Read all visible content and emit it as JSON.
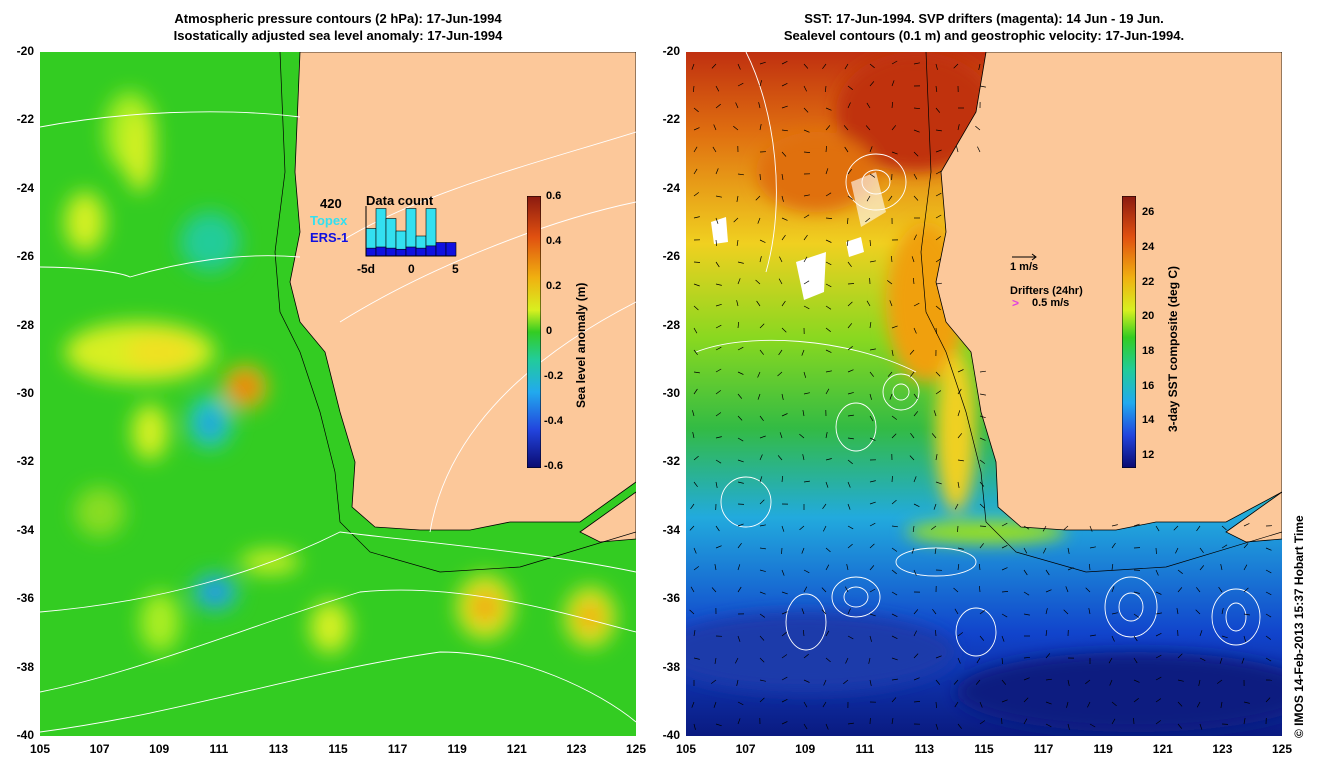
{
  "left_panel": {
    "title_line1": "Atmospheric pressure contours (2 hPa): 17-Jun-1994",
    "title_line2": "Isostatically adjusted sea level anomaly: 17-Jun-1994",
    "colorbar_title": "Sea level anomaly (m)",
    "colorbar_ticks": [
      "0.6",
      "0.4",
      "0.2",
      "0",
      "-0.2",
      "-0.4",
      "-0.6"
    ],
    "inset": {
      "count": "420",
      "topex_label": "Topex",
      "ers_label": "ERS-1",
      "title": "Data count",
      "x_ticks": [
        "-5d",
        "0",
        "5"
      ],
      "topex_color": "#33e0f0",
      "ers_color": "#1010e0",
      "topex_bars": [
        0.55,
        0.95,
        0.75,
        0.5,
        0.95,
        0.4,
        0.95,
        0.1,
        0.0
      ],
      "ers_bars": [
        0.35,
        0.4,
        0.35,
        0.3,
        0.4,
        0.35,
        0.45,
        0.6,
        0.6
      ]
    }
  },
  "right_panel": {
    "title_line1": "SST: 17-Jun-1994. SVP drifters (magenta): 14 Jun - 19 Jun.",
    "title_line2": "Sealevel contours (0.1 m) and geostrophic velocity: 17-Jun-1994.",
    "colorbar_title": "3-day SST composite (deg C)",
    "colorbar_ticks": [
      "26",
      "24",
      "22",
      "20",
      "18",
      "16",
      "14",
      "12"
    ],
    "vector_scale_label": "1 m/s",
    "drifters_label": "Drifters (24hr)",
    "drifter_speed_label": "0.5 m/s",
    "drifter_color": "#e040e0"
  },
  "axes": {
    "y_ticks": [
      "-20",
      "-22",
      "-24",
      "-26",
      "-28",
      "-30",
      "-32",
      "-34",
      "-36",
      "-38",
      "-40"
    ],
    "x_ticks": [
      "105",
      "107",
      "109",
      "111",
      "113",
      "115",
      "117",
      "119",
      "121",
      "123",
      "125"
    ]
  },
  "credit": "© IMOS 14-Feb-2013 15:37 Hobart Time",
  "colors": {
    "land": "#fcc89a",
    "ocean_green": "#33cc22"
  }
}
